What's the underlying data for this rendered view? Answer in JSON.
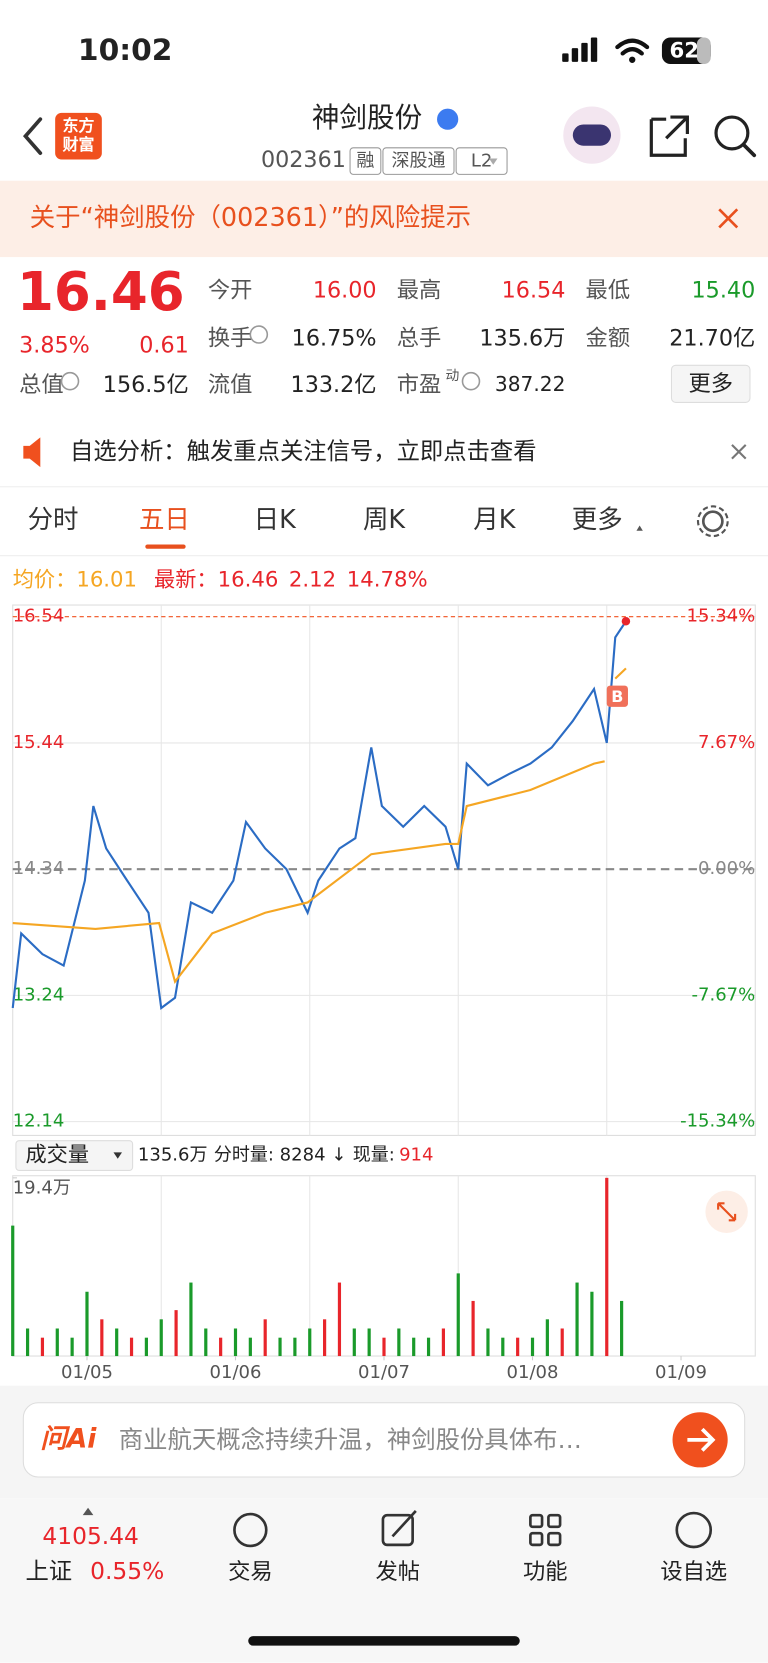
{
  "status_bar": {
    "time": "10:02",
    "battery": "62"
  },
  "header": {
    "logo_lines": [
      "东方",
      "财富"
    ],
    "title": "神剑股份",
    "code": "002361",
    "tags": [
      "融",
      "深股通",
      "L2"
    ]
  },
  "risk_banner": "关于“神剑股份（002361）”的风险提示",
  "quote": {
    "price": "16.46",
    "change_pct": "3.85%",
    "change": "0.61",
    "fields": [
      {
        "label": "今开",
        "value": "16.00",
        "color": "#e8252b"
      },
      {
        "label": "最高",
        "value": "16.54",
        "color": "#e8252b"
      },
      {
        "label": "最低",
        "value": "15.40",
        "color": "#1a9a2a"
      },
      {
        "label": "换手",
        "value": "16.75%",
        "color": "#222222"
      },
      {
        "label": "总手",
        "value": "135.6万",
        "color": "#222222"
      },
      {
        "label": "金额",
        "value": "21.70亿",
        "color": "#222222"
      },
      {
        "label": "总值",
        "value": "156.5亿",
        "color": "#222222"
      },
      {
        "label": "流值",
        "value": "133.2亿",
        "color": "#222222"
      },
      {
        "label": "市盈",
        "sup": "动",
        "value": "387.22",
        "color": "#222222"
      }
    ],
    "more": "更多"
  },
  "notice": "自选分析：触发重点关注信号，立即点击查看",
  "tabs": [
    "分时",
    "五日",
    "日K",
    "周K",
    "月K",
    "更多"
  ],
  "chart_data": {
    "type": "line",
    "legend": {
      "avg_label": "均价：",
      "avg": "16.01",
      "last_label": "最新：",
      "last": "16.46",
      "change": "2.12",
      "change_pct": "14.78%"
    },
    "xlim": [
      0,
      5
    ],
    "xticks": [
      {
        "value": 0.5,
        "label": "01/05"
      },
      {
        "value": 1.5,
        "label": "01/06"
      },
      {
        "value": 2.5,
        "label": "01/07"
      },
      {
        "value": 3.5,
        "label": "01/08"
      },
      {
        "value": 4.5,
        "label": "01/09"
      }
    ],
    "ylim": [
      12.14,
      16.54
    ],
    "yticks": [
      16.54,
      15.44,
      14.34,
      13.24,
      12.14
    ],
    "y2lim": [
      -15.34,
      15.34
    ],
    "y2ticks": [
      {
        "value": 15.34,
        "label": "15.34%"
      },
      {
        "value": 7.67,
        "label": "7.67%"
      },
      {
        "value": 0,
        "label": "0.00%"
      },
      {
        "value": -7.67,
        "label": "-7.67%"
      },
      {
        "value": -15.34,
        "label": "-15.34%"
      }
    ],
    "series": [
      {
        "color": "#2b6cc4",
        "x": [
          0,
          0.057,
          0.2,
          0.343,
          0.486,
          0.543,
          0.629,
          0.771,
          0.914,
          1.0,
          1.093,
          1.2,
          1.343,
          1.486,
          1.571,
          1.7,
          1.843,
          1.986,
          2.057,
          2.2,
          2.307,
          2.414,
          2.486,
          2.629,
          2.771,
          2.914,
          3.0,
          3.057,
          3.2,
          3.343,
          3.486,
          3.629,
          3.771,
          3.914,
          4.0,
          4.057,
          4.129
        ],
        "values": [
          13.13,
          13.78,
          13.6,
          13.5,
          14.24,
          14.89,
          14.52,
          14.24,
          13.96,
          13.13,
          13.22,
          14.05,
          13.96,
          14.24,
          14.75,
          14.52,
          14.34,
          13.96,
          14.24,
          14.52,
          14.61,
          15.4,
          14.89,
          14.71,
          14.89,
          14.71,
          14.34,
          15.26,
          15.07,
          15.17,
          15.26,
          15.4,
          15.63,
          15.91,
          15.44,
          16.36,
          16.5
        ]
      },
      {
        "color": "#f5a623",
        "x": [
          0,
          0.557,
          0.986,
          1.093,
          1.343,
          1.7,
          1.986,
          2.414,
          2.914,
          3.0,
          3.057,
          3.486,
          3.914,
          3.986,
          4.0,
          4.057,
          4.129
        ],
        "values": [
          13.87,
          13.82,
          13.87,
          13.36,
          13.78,
          13.96,
          14.05,
          14.47,
          14.56,
          14.56,
          14.89,
          15.03,
          15.26,
          15.28,
          null,
          16.0,
          16.09
        ]
      }
    ],
    "marker": "B"
  },
  "volume": {
    "label": "成交量",
    "total": "135.6万",
    "tick_label": "分时量: 8284 ↓",
    "now_label": "现量:",
    "now": "914",
    "ylim": [
      0,
      19.4
    ],
    "yticks": [
      {
        "value": 19.4,
        "label": "19.4万"
      }
    ],
    "x": [
      0,
      0.1,
      0.2,
      0.3,
      0.4,
      0.5,
      0.6,
      0.7,
      0.8,
      0.9,
      1.0,
      1.1,
      1.2,
      1.3,
      1.4,
      1.5,
      1.6,
      1.7,
      1.8,
      1.9,
      2.0,
      2.1,
      2.2,
      2.3,
      2.4,
      2.5,
      2.6,
      2.7,
      2.8,
      2.9,
      3.0,
      3.1,
      3.2,
      3.3,
      3.4,
      3.5,
      3.6,
      3.7,
      3.8,
      3.9,
      4.0,
      4.1
    ],
    "values": [
      14.2,
      3,
      2,
      3,
      2,
      7,
      4,
      3,
      2,
      2,
      4,
      5,
      8,
      3,
      2,
      3,
      2,
      4,
      2,
      2,
      3,
      4,
      8,
      3,
      3,
      2,
      3,
      2,
      2,
      3,
      9,
      6,
      3,
      2,
      2,
      2,
      4,
      3,
      8,
      7,
      19.4,
      6
    ],
    "colors": [
      "#1a9a2a",
      "#1a9a2a",
      "#e8252b",
      "#1a9a2a",
      "#1a9a2a",
      "#1a9a2a",
      "#e8252b",
      "#1a9a2a",
      "#e8252b",
      "#1a9a2a",
      "#1a9a2a",
      "#e8252b",
      "#1a9a2a",
      "#1a9a2a",
      "#e8252b",
      "#1a9a2a",
      "#1a9a2a",
      "#e8252b",
      "#1a9a2a",
      "#1a9a2a",
      "#1a9a2a",
      "#e8252b",
      "#e8252b",
      "#1a9a2a",
      "#1a9a2a",
      "#e8252b",
      "#1a9a2a",
      "#1a9a2a",
      "#1a9a2a",
      "#e8252b",
      "#1a9a2a",
      "#e8252b",
      "#1a9a2a",
      "#1a9a2a",
      "#e8252b",
      "#1a9a2a",
      "#1a9a2a",
      "#e8252b",
      "#1a9a2a",
      "#1a9a2a",
      "#e8252b",
      "#1a9a2a"
    ]
  },
  "ai_bar": {
    "logo": "问Ai",
    "text": "商业航天概念持续升温，神剑股份具体布…"
  },
  "bottom": {
    "index_value": "4105.44",
    "index_name": "上证",
    "index_change": "0.55%",
    "nav": [
      "交易",
      "发帖",
      "功能",
      "设自选"
    ]
  }
}
